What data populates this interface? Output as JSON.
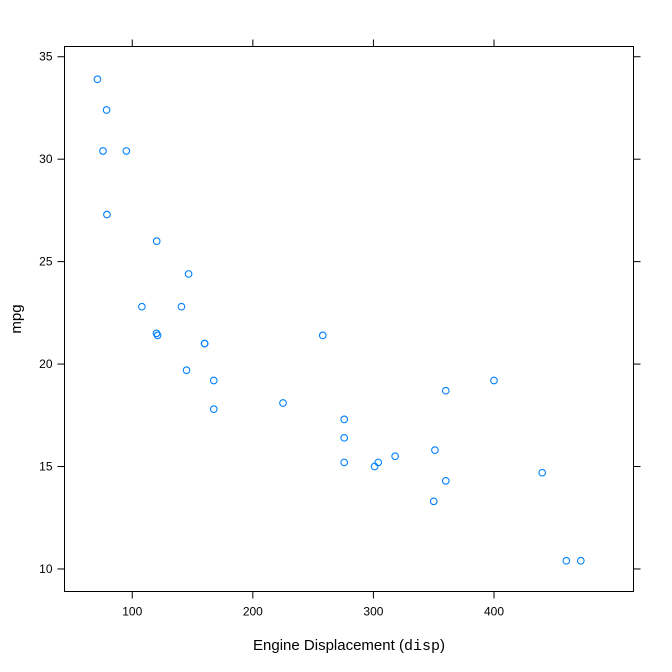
{
  "chart_data": {
    "type": "scatter",
    "title": "",
    "xlabel": "Engine Displacement (",
    "xlabel_code": "disp",
    "xlabel_suffix": ")",
    "ylabel": "mpg",
    "xlim": [
      43.8,
      515.7
    ],
    "ylim": [
      8.9,
      35.5
    ],
    "xticks": [
      100,
      200,
      300,
      400
    ],
    "yticks": [
      10,
      15,
      20,
      25,
      30,
      35
    ],
    "grid": false,
    "legend": "none",
    "point_color": "#0080ff",
    "x": [
      160,
      160,
      108,
      258,
      360,
      225,
      360,
      146.7,
      140.8,
      167.6,
      167.6,
      275.8,
      275.8,
      275.8,
      472,
      460,
      440,
      78.7,
      75.7,
      71.1,
      120.1,
      318,
      304,
      350,
      400,
      79,
      120.3,
      95.1,
      351,
      145,
      301,
      121
    ],
    "y": [
      21,
      21,
      22.8,
      21.4,
      18.7,
      18.1,
      14.3,
      24.4,
      22.8,
      19.2,
      17.8,
      16.4,
      17.3,
      15.2,
      10.4,
      10.4,
      14.7,
      32.4,
      30.4,
      33.9,
      21.5,
      15.5,
      15.2,
      13.3,
      19.2,
      27.3,
      26,
      30.4,
      15.8,
      19.7,
      15,
      21.4
    ]
  }
}
